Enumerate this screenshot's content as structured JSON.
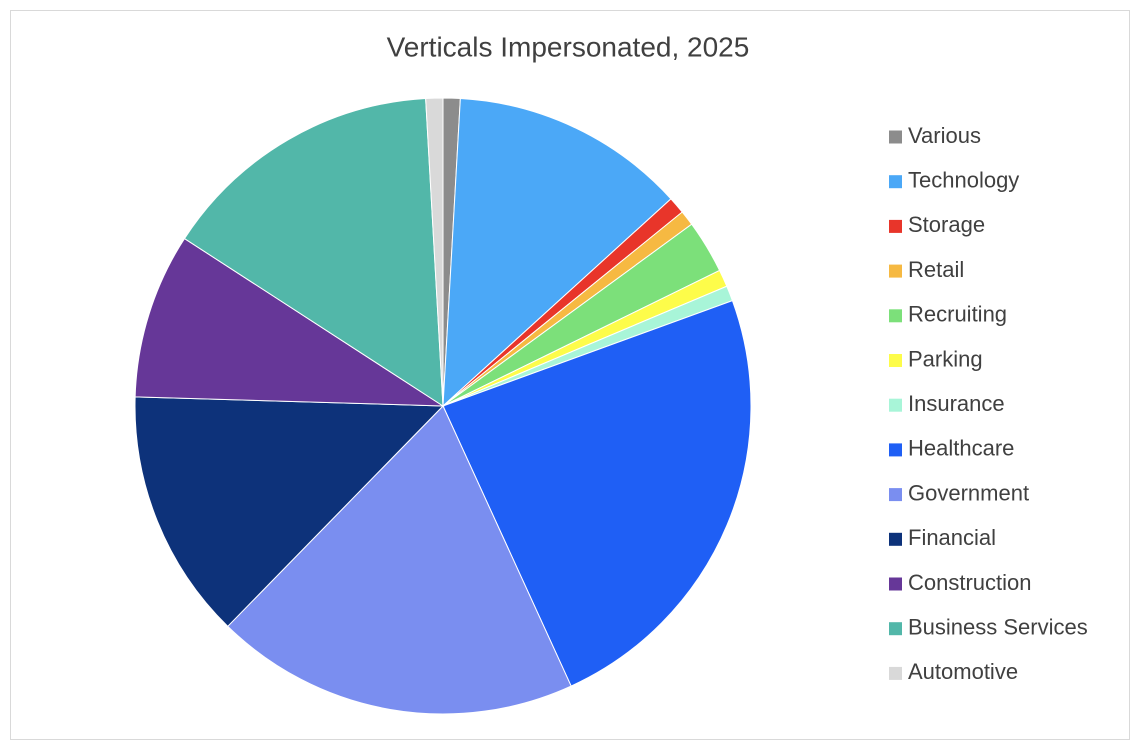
{
  "chart_data": {
    "type": "pie",
    "title": "Verticals Impersonated, 2025",
    "categories": [
      "Various",
      "Technology",
      "Storage",
      "Retail",
      "Recruiting",
      "Parking",
      "Insurance",
      "Healthcare",
      "Government",
      "Financial",
      "Construction",
      "Business Services",
      "Automotive"
    ],
    "values": [
      0.9,
      12.4,
      0.9,
      0.8,
      2.8,
      0.9,
      0.8,
      23.8,
      19.2,
      13.2,
      8.7,
      15,
      0.9
    ],
    "colors": [
      "#8c8c8c",
      "#4ba8f7",
      "#e8352a",
      "#f6b942",
      "#7ce07a",
      "#fdfc4a",
      "#a8f5d8",
      "#1f5ff5",
      "#7a8ef0",
      "#0d327a",
      "#663798",
      "#52b7a9",
      "#d9d9d9"
    ],
    "legend": "right"
  }
}
